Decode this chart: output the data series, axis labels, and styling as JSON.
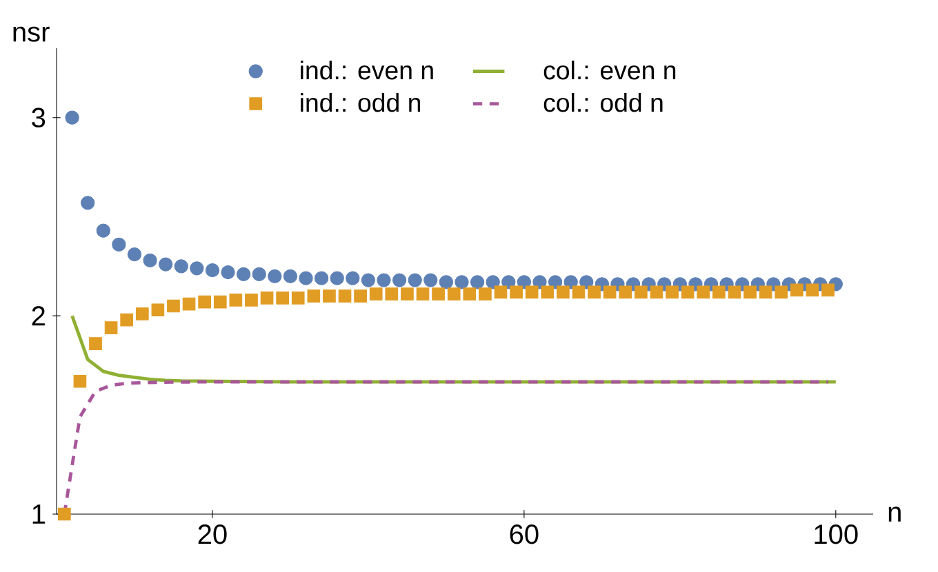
{
  "chart_data": {
    "type": "scatter",
    "xlabel": "n",
    "ylabel": "nsr",
    "xlim": [
      0,
      104.8
    ],
    "ylim": [
      1,
      3.35
    ],
    "xticks": [
      20,
      60,
      100
    ],
    "yticks": [
      1,
      2,
      3
    ],
    "legend": "top",
    "series": [
      {
        "name": "ind.: even n",
        "marker": "circle",
        "color": "#5e81b5",
        "x": [
          2,
          4,
          6,
          8,
          10,
          12,
          14,
          16,
          18,
          20,
          22,
          24,
          26,
          28,
          30,
          32,
          34,
          36,
          38,
          40,
          42,
          44,
          46,
          48,
          50,
          52,
          54,
          56,
          58,
          60,
          62,
          64,
          66,
          68,
          70,
          72,
          74,
          76,
          78,
          80,
          82,
          84,
          86,
          88,
          90,
          92,
          94,
          96,
          98,
          100
        ],
        "values": [
          3.0,
          2.57,
          2.43,
          2.36,
          2.31,
          2.28,
          2.26,
          2.25,
          2.24,
          2.23,
          2.22,
          2.21,
          2.21,
          2.2,
          2.2,
          2.19,
          2.19,
          2.19,
          2.19,
          2.18,
          2.18,
          2.18,
          2.18,
          2.18,
          2.17,
          2.17,
          2.17,
          2.17,
          2.17,
          2.17,
          2.17,
          2.17,
          2.17,
          2.17,
          2.16,
          2.16,
          2.16,
          2.16,
          2.16,
          2.16,
          2.16,
          2.16,
          2.16,
          2.16,
          2.16,
          2.16,
          2.16,
          2.16,
          2.16,
          2.16
        ]
      },
      {
        "name": "ind.: odd n",
        "marker": "square",
        "color": "#e19c24",
        "x": [
          1,
          3,
          5,
          7,
          9,
          11,
          13,
          15,
          17,
          19,
          21,
          23,
          25,
          27,
          29,
          31,
          33,
          35,
          37,
          39,
          41,
          43,
          45,
          47,
          49,
          51,
          53,
          55,
          57,
          59,
          61,
          63,
          65,
          67,
          69,
          71,
          73,
          75,
          77,
          79,
          81,
          83,
          85,
          87,
          89,
          91,
          93,
          95,
          97,
          99
        ],
        "values": [
          1.0,
          1.67,
          1.86,
          1.94,
          1.98,
          2.01,
          2.03,
          2.05,
          2.06,
          2.07,
          2.07,
          2.08,
          2.08,
          2.09,
          2.09,
          2.09,
          2.1,
          2.1,
          2.1,
          2.1,
          2.11,
          2.11,
          2.11,
          2.11,
          2.11,
          2.11,
          2.11,
          2.11,
          2.12,
          2.12,
          2.12,
          2.12,
          2.12,
          2.12,
          2.12,
          2.12,
          2.12,
          2.12,
          2.12,
          2.12,
          2.12,
          2.12,
          2.12,
          2.12,
          2.12,
          2.12,
          2.12,
          2.13,
          2.13,
          2.13
        ]
      },
      {
        "name": "col.: even n",
        "type": "line",
        "marker": "none",
        "line_style": "solid",
        "color": "#8fb032",
        "x": [
          2,
          4,
          6,
          8,
          10,
          12,
          14,
          16,
          20,
          30,
          40,
          60,
          80,
          100
        ],
        "values": [
          2.0,
          1.78,
          1.72,
          1.7,
          1.69,
          1.68,
          1.675,
          1.672,
          1.67,
          1.667,
          1.667,
          1.667,
          1.667,
          1.667
        ]
      },
      {
        "name": "col.: odd n",
        "type": "line",
        "marker": "none",
        "line_style": "dashed",
        "color": "#a8579a",
        "x": [
          1,
          3,
          5,
          7,
          9,
          11,
          13,
          15,
          19,
          29,
          39,
          59,
          79,
          99
        ],
        "values": [
          1.0,
          1.49,
          1.62,
          1.65,
          1.66,
          1.663,
          1.665,
          1.666,
          1.667,
          1.667,
          1.667,
          1.667,
          1.667,
          1.667
        ]
      }
    ]
  }
}
